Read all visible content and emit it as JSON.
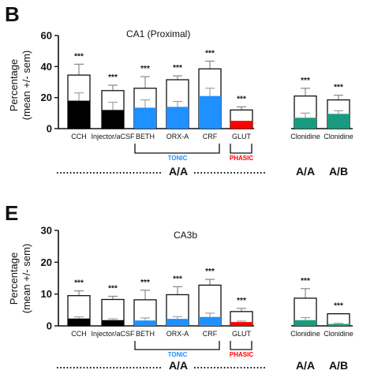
{
  "colors": {
    "outer_bar": "#ffffff",
    "cch_injector": "#000000",
    "tonic": "#1e90ff",
    "phasic": "#ff0000",
    "clonidine": "#1a9b80",
    "tonic_label": "#1e90ff",
    "phasic_label": "#ff0000",
    "ink": "#111111"
  },
  "chart_data": [
    {
      "panel_label": "B",
      "type": "bar",
      "title": "CA1 (Proximal)",
      "ylabel_line1": "Percentage",
      "ylabel_line2": "(mean +/- sem)",
      "ylim": [
        0,
        60
      ],
      "yticks": [
        0,
        20,
        40,
        60
      ],
      "categories": [
        "CCH",
        "Injector/aCSF",
        "BETH",
        "ORX-A",
        "CRF",
        "GLUT",
        "Clonidine",
        "Clonidine"
      ],
      "bar_groups": [
        "black",
        "black",
        "tonic",
        "tonic",
        "tonic",
        "phasic",
        "clonidine",
        "clonidine"
      ],
      "series": [
        {
          "values": [
            34.5,
            24.5,
            26,
            31.5,
            38.5,
            12,
            21,
            18.5
          ],
          "errors": [
            7,
            3.5,
            7.5,
            2.5,
            5,
            2,
            5,
            3
          ]
        },
        {
          "values": [
            18,
            12,
            13.5,
            14,
            21,
            5,
            7,
            9.5
          ],
          "errors": [
            5,
            5,
            5,
            3.5,
            5,
            0,
            3,
            2
          ]
        }
      ],
      "significance": [
        "***",
        "***",
        "***",
        "***",
        "***",
        "***",
        "***",
        "***"
      ],
      "group_labels": {
        "tonic": "TONIC",
        "phasic": "PHASIC"
      },
      "condition_labels": {
        "main": "A/A",
        "clon1": "A/A",
        "clon2": "A/B"
      }
    },
    {
      "panel_label": "E",
      "type": "bar",
      "title": "CA3b",
      "ylabel_line1": "Percentage",
      "ylabel_line2": "(mean +/- sem)",
      "ylim": [
        0,
        30
      ],
      "yticks": [
        0,
        10,
        20,
        30
      ],
      "categories": [
        "CCH",
        "Injector/aCSF",
        "BETH",
        "ORX-A",
        "CRF",
        "GLUT",
        "Clonidine",
        "Clonidine"
      ],
      "bar_groups": [
        "black",
        "black",
        "tonic",
        "tonic",
        "tonic",
        "phasic",
        "clonidine",
        "clonidine"
      ],
      "series": [
        {
          "values": [
            9.5,
            8.3,
            8.2,
            9.8,
            12.8,
            4.5,
            8.7,
            3.8
          ],
          "errors": [
            1.5,
            1,
            3,
            2.5,
            1.8,
            1,
            3,
            0
          ]
        },
        {
          "values": [
            2.3,
            1.8,
            1.7,
            2.2,
            2.8,
            1.2,
            1.8,
            0.6
          ],
          "errors": [
            0.5,
            0.4,
            0.8,
            0.7,
            1.2,
            0.3,
            0.8,
            0.2
          ]
        }
      ],
      "significance": [
        "***",
        "***",
        "***",
        "***",
        "***",
        "***",
        "***",
        "***"
      ],
      "group_labels": {
        "tonic": "TONIC",
        "phasic": "PHASIC"
      },
      "condition_labels": {
        "main": "A/A",
        "clon1": "A/A",
        "clon2": "A/B"
      }
    }
  ]
}
